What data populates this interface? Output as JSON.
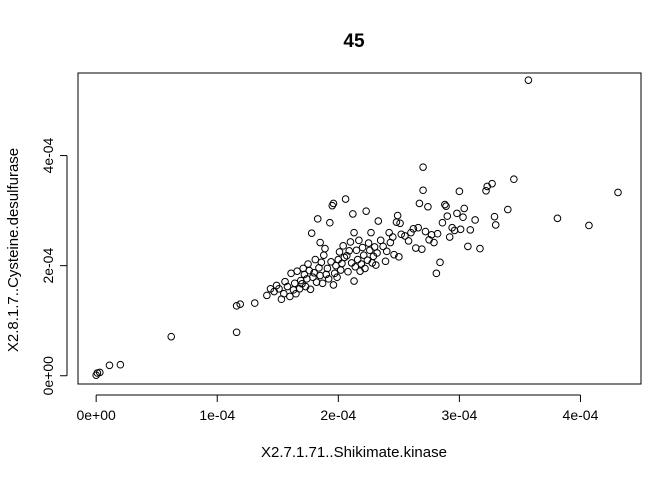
{
  "chart_data": {
    "type": "scatter",
    "title": "45",
    "xlabel": "X2.7.1.71..Shikimate.kinase",
    "ylabel": "X2.8.1.7..Cysteine.desulfurase",
    "xlim": [
      -1.5e-05,
      0.00045
    ],
    "ylim": [
      -1.5e-05,
      0.00055
    ],
    "xticks": [
      0,
      0.0001,
      0.0002,
      0.0003,
      0.0004
    ],
    "xtick_labels": [
      "0e+00",
      "1e-04",
      "2e-04",
      "3e-04",
      "4e-04"
    ],
    "yticks": [
      0,
      0.0002,
      0.0004
    ],
    "ytick_labels": [
      "0e+00",
      "2e-04",
      "4e-04"
    ],
    "grid": false,
    "legend": "none",
    "marker": "open-circle",
    "color": "#000000",
    "points": [
      [
        0.0,
        1e-06
      ],
      [
        1e-06,
        5e-06
      ],
      [
        3e-06,
        6e-06
      ],
      [
        1.1e-05,
        1.9e-05
      ],
      [
        2e-05,
        2e-05
      ],
      [
        6.2e-05,
        7.1e-05
      ],
      [
        0.000116,
        7.9e-05
      ],
      [
        0.000116,
        0.000127
      ],
      [
        0.000119,
        0.00013
      ],
      [
        0.000131,
        0.000132
      ],
      [
        0.000141,
        0.000146
      ],
      [
        0.000144,
        0.000158
      ],
      [
        0.000147,
        0.000153
      ],
      [
        0.000149,
        0.000164
      ],
      [
        0.000151,
        0.000158
      ],
      [
        0.000153,
        0.000139
      ],
      [
        0.000155,
        0.000149
      ],
      [
        0.000156,
        0.000171
      ],
      [
        0.000158,
        0.000162
      ],
      [
        0.00016,
        0.000144
      ],
      [
        0.000161,
        0.000186
      ],
      [
        0.000163,
        0.000156
      ],
      [
        0.000164,
        0.000168
      ],
      [
        0.000165,
        0.000149
      ],
      [
        0.000166,
        0.00019
      ],
      [
        0.000168,
        0.000158
      ],
      [
        0.000169,
        0.000173
      ],
      [
        0.00017,
        0.000167
      ],
      [
        0.000171,
        0.000195
      ],
      [
        0.000172,
        0.000184
      ],
      [
        0.000173,
        0.000162
      ],
      [
        0.000174,
        0.000176
      ],
      [
        0.000175,
        0.000203
      ],
      [
        0.000176,
        0.000191
      ],
      [
        0.000177,
        0.000157
      ],
      [
        0.000178,
        0.000259
      ],
      [
        0.000179,
        0.000179
      ],
      [
        0.00018,
        0.000187
      ],
      [
        0.000181,
        0.000211
      ],
      [
        0.000182,
        0.00017
      ],
      [
        0.000183,
        0.000285
      ],
      [
        0.000184,
        0.000196
      ],
      [
        0.000185,
        0.000182
      ],
      [
        0.000185,
        0.000242
      ],
      [
        0.000186,
        0.000206
      ],
      [
        0.000187,
        0.000168
      ],
      [
        0.000188,
        0.000219
      ],
      [
        0.000189,
        0.000231
      ],
      [
        0.00019,
        0.000184
      ],
      [
        0.000191,
        0.000195
      ],
      [
        0.000192,
        0.000176
      ],
      [
        0.000193,
        0.000278
      ],
      [
        0.000194,
        0.000207
      ],
      [
        0.000195,
        0.000309
      ],
      [
        0.000196,
        0.000313
      ],
      [
        0.000196,
        0.000165
      ],
      [
        0.000197,
        0.000186
      ],
      [
        0.000198,
        0.0002
      ],
      [
        0.000199,
        0.000179
      ],
      [
        0.0002,
        0.000211
      ],
      [
        0.000201,
        0.000225
      ],
      [
        0.000202,
        0.000192
      ],
      [
        0.000203,
        0.000204
      ],
      [
        0.000204,
        0.000236
      ],
      [
        0.000205,
        0.000215
      ],
      [
        0.000206,
        0.000321
      ],
      [
        0.000207,
        0.000218
      ],
      [
        0.000208,
        0.000189
      ],
      [
        0.000209,
        0.000227
      ],
      [
        0.00021,
        0.000243
      ],
      [
        0.000211,
        0.000205
      ],
      [
        0.000212,
        0.000294
      ],
      [
        0.000213,
        0.000172
      ],
      [
        0.000213,
        0.00026
      ],
      [
        0.000214,
        0.000198
      ],
      [
        0.000215,
        0.000228
      ],
      [
        0.000216,
        0.000211
      ],
      [
        0.000217,
        0.000246
      ],
      [
        0.000218,
        0.00019
      ],
      [
        0.000219,
        0.000203
      ],
      [
        0.00022,
        0.000233
      ],
      [
        0.000221,
        0.000219
      ],
      [
        0.000222,
        0.000195
      ],
      [
        0.000223,
        0.000299
      ],
      [
        0.000224,
        0.00021
      ],
      [
        0.000225,
        0.000241
      ],
      [
        0.000226,
        0.000228
      ],
      [
        0.000227,
        0.00026
      ],
      [
        0.000228,
        0.000205
      ],
      [
        0.000229,
        0.000217
      ],
      [
        0.00023,
        0.000234
      ],
      [
        0.000231,
        0.000201
      ],
      [
        0.000232,
        0.000223
      ],
      [
        0.000233,
        0.000281
      ],
      [
        0.000235,
        0.000246
      ],
      [
        0.000237,
        0.000235
      ],
      [
        0.000239,
        0.000208
      ],
      [
        0.00024,
        0.000226
      ],
      [
        0.000242,
        0.00026
      ],
      [
        0.000243,
        0.000242
      ],
      [
        0.000245,
        0.000252
      ],
      [
        0.000246,
        0.00022
      ],
      [
        0.000248,
        0.000279
      ],
      [
        0.000249,
        0.000291
      ],
      [
        0.00025,
        0.000216
      ],
      [
        0.000251,
        0.000277
      ],
      [
        0.000252,
        0.000257
      ],
      [
        0.000255,
        0.000254
      ],
      [
        0.000258,
        0.000245
      ],
      [
        0.00026,
        0.00026
      ],
      [
        0.000262,
        0.000267
      ],
      [
        0.000264,
        0.000232
      ],
      [
        0.000266,
        0.000269
      ],
      [
        0.000267,
        0.000313
      ],
      [
        0.000269,
        0.00023
      ],
      [
        0.00027,
        0.000337
      ],
      [
        0.00027,
        0.000379
      ],
      [
        0.000272,
        0.000262
      ],
      [
        0.000274,
        0.000307
      ],
      [
        0.000275,
        0.000247
      ],
      [
        0.000277,
        0.000256
      ],
      [
        0.000279,
        0.000242
      ],
      [
        0.000281,
        0.000186
      ],
      [
        0.000282,
        0.000258
      ],
      [
        0.000284,
        0.000206
      ],
      [
        0.000286,
        0.000278
      ],
      [
        0.000288,
        0.000311
      ],
      [
        0.000289,
        0.000308
      ],
      [
        0.00029,
        0.00029
      ],
      [
        0.000292,
        0.000252
      ],
      [
        0.000294,
        0.000269
      ],
      [
        0.000296,
        0.000264
      ],
      [
        0.000298,
        0.000295
      ],
      [
        0.0003,
        0.000335
      ],
      [
        0.000301,
        0.000266
      ],
      [
        0.000303,
        0.000288
      ],
      [
        0.000304,
        0.000304
      ],
      [
        0.000307,
        0.000235
      ],
      [
        0.000309,
        0.000265
      ],
      [
        0.000313,
        0.000283
      ],
      [
        0.000317,
        0.000231
      ],
      [
        0.000322,
        0.000336
      ],
      [
        0.000323,
        0.000344
      ],
      [
        0.000327,
        0.000349
      ],
      [
        0.000329,
        0.000289
      ],
      [
        0.00033,
        0.000274
      ],
      [
        0.00034,
        0.000302
      ],
      [
        0.000345,
        0.000357
      ],
      [
        0.000357,
        0.000537
      ],
      [
        0.000381,
        0.000286
      ],
      [
        0.000407,
        0.000273
      ],
      [
        0.000431,
        0.000333
      ]
    ]
  }
}
